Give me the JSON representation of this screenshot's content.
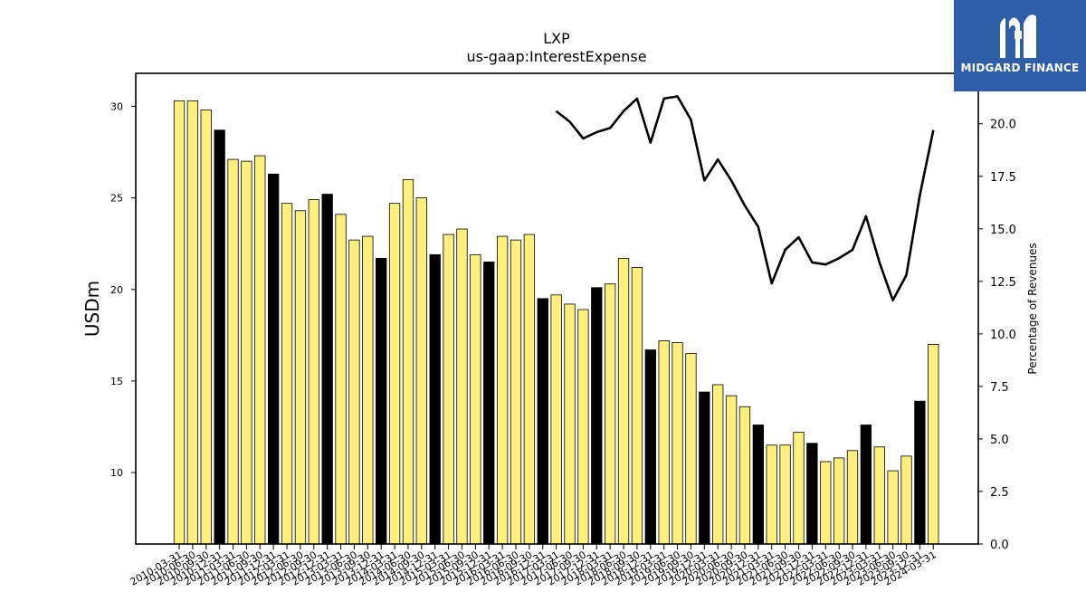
{
  "brand": {
    "name": "MIDGARD FINANCE",
    "logo_icon": "midgard-m-logo-icon",
    "bg_color": "#2f5ea8"
  },
  "chart_data": {
    "type": "bar",
    "title": "LXP",
    "subtitle": "us-gaap:InterestExpense",
    "ylabel": "USDm",
    "y2label": "Percentage of Revenues",
    "ylim": [
      6.1,
      31.8
    ],
    "y2lim": [
      0,
      22.4
    ],
    "yticks": [
      10,
      15,
      20,
      25,
      30
    ],
    "y2ticks": [
      "0.0",
      "2.5",
      "5.0",
      "7.5",
      "10.0",
      "12.5",
      "15.0",
      "17.5",
      "20.0"
    ],
    "grid": false,
    "colors": {
      "bar": "#fff07e",
      "bar_q4": "#000000",
      "line": "#000000"
    },
    "categories": [
      "2010-03-31",
      "2010-06-30",
      "2010-09-30",
      "2010-12-31",
      "2011-03-31",
      "2011-06-30",
      "2011-09-30",
      "2011-12-31",
      "2012-03-31",
      "2012-06-30",
      "2012-09-30",
      "2012-12-31",
      "2013-03-31",
      "2013-06-30",
      "2013-09-30",
      "2013-12-31",
      "2014-03-31",
      "2014-06-30",
      "2014-09-30",
      "2014-12-31",
      "2015-03-31",
      "2015-06-30",
      "2015-09-30",
      "2015-12-31",
      "2016-03-31",
      "2016-06-30",
      "2016-09-30",
      "2016-12-31",
      "2017-03-31",
      "2017-06-30",
      "2017-09-30",
      "2017-12-31",
      "2018-03-31",
      "2018-06-30",
      "2018-09-30",
      "2018-12-31",
      "2019-03-31",
      "2019-06-30",
      "2019-09-30",
      "2019-12-31",
      "2020-03-31",
      "2020-06-30",
      "2020-09-30",
      "2020-12-31",
      "2021-03-31",
      "2021-06-30",
      "2021-09-30",
      "2021-12-31",
      "2022-03-31",
      "2022-06-30",
      "2022-09-30",
      "2022-12-31",
      "2023-03-31",
      "2023-06-30",
      "2023-09-30",
      "2023-12-31",
      "2024-03-31"
    ],
    "series": [
      {
        "kind": "bar",
        "values": [
          30.3,
          30.3,
          29.8,
          28.7,
          27.1,
          27.0,
          27.3,
          26.3,
          24.7,
          24.3,
          24.9,
          25.2,
          24.1,
          22.7,
          22.9,
          21.7,
          24.7,
          26.0,
          25.0,
          21.9,
          23.0,
          23.3,
          21.9,
          21.5,
          22.9,
          22.7,
          23.0,
          19.5,
          19.7,
          19.2,
          18.9,
          20.1,
          20.3,
          21.7,
          21.2,
          16.7,
          17.2,
          17.1,
          16.5,
          14.4,
          14.8,
          14.2,
          13.6,
          12.6,
          11.5,
          11.5,
          12.2,
          11.6,
          10.6,
          10.8,
          11.2,
          12.6,
          11.4,
          10.1,
          10.9,
          13.9,
          17.0
        ]
      },
      {
        "kind": "line",
        "axis": "right",
        "values": [
          null,
          null,
          null,
          null,
          null,
          null,
          null,
          null,
          null,
          null,
          null,
          null,
          null,
          null,
          null,
          null,
          null,
          null,
          null,
          null,
          null,
          null,
          null,
          null,
          null,
          null,
          null,
          null,
          20.6,
          20.1,
          19.3,
          19.6,
          19.8,
          20.6,
          21.2,
          19.1,
          21.2,
          21.3,
          20.2,
          17.3,
          18.3,
          17.3,
          16.1,
          15.1,
          12.4,
          14.0,
          14.6,
          13.4,
          13.3,
          13.6,
          14.0,
          15.6,
          13.4,
          11.6,
          12.8,
          16.6,
          19.7
        ]
      }
    ]
  }
}
